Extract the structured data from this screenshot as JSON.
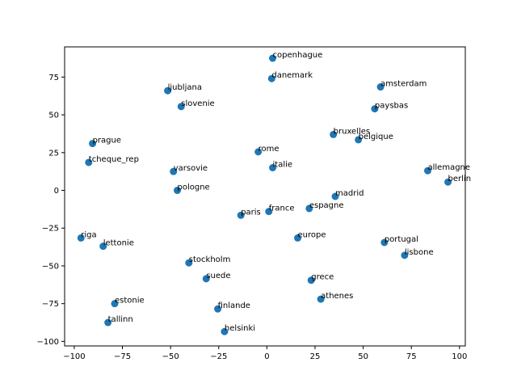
{
  "chart_data": {
    "type": "scatter",
    "title": "",
    "xlabel": "",
    "ylabel": "",
    "xlim": [
      -105,
      103
    ],
    "ylim": [
      -103,
      95
    ],
    "xticks": [
      -100,
      -75,
      -50,
      -25,
      0,
      25,
      50,
      75,
      100
    ],
    "yticks": [
      -100,
      -75,
      -50,
      -25,
      0,
      25,
      50,
      75
    ],
    "grid": false,
    "legend": "none",
    "marker_color": "#1f77b4",
    "points": [
      {
        "label": "copenhague",
        "x": 3,
        "y": 87.5
      },
      {
        "label": "danemark",
        "x": 2.5,
        "y": 74
      },
      {
        "label": "ljubljana",
        "x": -51.5,
        "y": 66
      },
      {
        "label": "amsterdam",
        "x": 59,
        "y": 68.5
      },
      {
        "label": "slovenie",
        "x": -44.5,
        "y": 55.5
      },
      {
        "label": "paysbas",
        "x": 56,
        "y": 54
      },
      {
        "label": "bruxelles",
        "x": 34.5,
        "y": 37
      },
      {
        "label": "belgique",
        "x": 47.5,
        "y": 33.5
      },
      {
        "label": "prague",
        "x": -90.5,
        "y": 31
      },
      {
        "label": "rome",
        "x": -4.5,
        "y": 25.5
      },
      {
        "label": "tcheque_rep",
        "x": -92.5,
        "y": 18.5
      },
      {
        "label": "italie",
        "x": 3,
        "y": 15
      },
      {
        "label": "allemagne",
        "x": 83.5,
        "y": 13
      },
      {
        "label": "varsovie",
        "x": -48.5,
        "y": 12.5
      },
      {
        "label": "berlin",
        "x": 94,
        "y": 5.5
      },
      {
        "label": "pologne",
        "x": -46.5,
        "y": 0
      },
      {
        "label": "madrid",
        "x": 35.5,
        "y": -4
      },
      {
        "label": "espagne",
        "x": 22,
        "y": -12
      },
      {
        "label": "france",
        "x": 1,
        "y": -14
      },
      {
        "label": "paris",
        "x": -13.5,
        "y": -16.5
      },
      {
        "label": "riga",
        "x": -96.5,
        "y": -31.5
      },
      {
        "label": "europe",
        "x": 16,
        "y": -31.5
      },
      {
        "label": "portugal",
        "x": 61,
        "y": -34.5
      },
      {
        "label": "lettonie",
        "x": -85,
        "y": -37
      },
      {
        "label": "lisbone",
        "x": 71.5,
        "y": -43
      },
      {
        "label": "stockholm",
        "x": -40.5,
        "y": -48
      },
      {
        "label": "suede",
        "x": -31.5,
        "y": -58.5
      },
      {
        "label": "grece",
        "x": 23,
        "y": -59.5
      },
      {
        "label": "athenes",
        "x": 28,
        "y": -72
      },
      {
        "label": "estonie",
        "x": -79,
        "y": -75
      },
      {
        "label": "finlande",
        "x": -25.5,
        "y": -78.5
      },
      {
        "label": "tallinn",
        "x": -82.5,
        "y": -87.5
      },
      {
        "label": "helsinki",
        "x": -22,
        "y": -93.5
      }
    ]
  }
}
